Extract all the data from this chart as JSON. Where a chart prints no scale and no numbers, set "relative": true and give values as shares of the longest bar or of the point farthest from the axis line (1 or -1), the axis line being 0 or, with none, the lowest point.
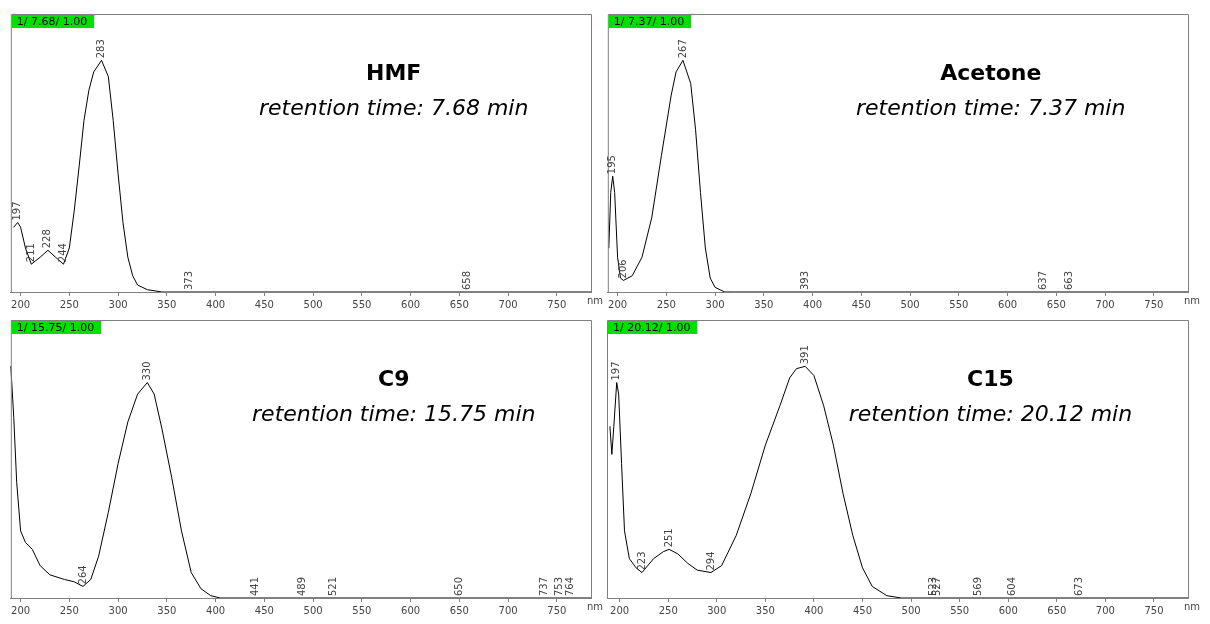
{
  "chart_data": [
    {
      "type": "line",
      "title": "HMF",
      "subtitle": "retention time: 7.68 min",
      "xlabel": "nm",
      "relative": true,
      "xlim": [
        190,
        785
      ],
      "xticks": [
        200,
        250,
        300,
        350,
        400,
        450,
        500,
        550,
        600,
        650,
        700,
        750
      ],
      "grid": false,
      "legend": false,
      "x": [
        193,
        197,
        200,
        205,
        211,
        220,
        228,
        236,
        244,
        250,
        255,
        260,
        265,
        270,
        275,
        283,
        290,
        295,
        300,
        305,
        310,
        315,
        320,
        330,
        345,
        373,
        658,
        785
      ],
      "series": [
        {
          "color": "#000000",
          "values": [
            0.28,
            0.3,
            0.28,
            0.19,
            0.12,
            0.15,
            0.18,
            0.15,
            0.12,
            0.19,
            0.35,
            0.54,
            0.74,
            0.87,
            0.95,
            1,
            0.93,
            0.74,
            0.51,
            0.3,
            0.15,
            0.07,
            0.03,
            0.01,
            0,
            0,
            0,
            0
          ]
        }
      ],
      "annotations": [
        "1/ 7.68/ 1.00",
        {
          "text": "197",
          "x": 197,
          "y": 0.3
        },
        {
          "text": "211",
          "x": 211,
          "y": 0.12
        },
        {
          "text": "228",
          "x": 228,
          "y": 0.18
        },
        {
          "text": "244",
          "x": 244,
          "y": 0.12
        },
        {
          "text": "283",
          "x": 283,
          "y": 1
        },
        {
          "text": "373",
          "x": 373,
          "y": 0
        },
        {
          "text": "658",
          "x": 658,
          "y": 0
        }
      ]
    },
    {
      "type": "line",
      "title": "Acetone",
      "subtitle": "retention time: 7.37 min",
      "xlabel": "nm",
      "relative": true,
      "xlim": [
        190,
        785
      ],
      "xticks": [
        200,
        250,
        300,
        350,
        400,
        450,
        500,
        550,
        600,
        650,
        700,
        750
      ],
      "grid": false,
      "legend": false,
      "x": [
        191,
        193,
        195,
        197,
        200,
        203,
        206,
        215,
        225,
        235,
        245,
        255,
        260,
        267,
        275,
        280,
        285,
        290,
        295,
        300,
        310,
        320,
        393,
        637,
        663,
        785
      ],
      "series": [
        {
          "color": "#000000",
          "values": [
            0.19,
            0.43,
            0.5,
            0.43,
            0.15,
            0.06,
            0.05,
            0.07,
            0.15,
            0.32,
            0.59,
            0.85,
            0.95,
            1,
            0.9,
            0.7,
            0.43,
            0.19,
            0.06,
            0.02,
            0,
            0,
            0,
            0,
            0,
            0
          ]
        }
      ],
      "annotations": [
        "1/ 7.37/ 1.00",
        {
          "text": "195",
          "x": 195,
          "y": 0.5
        },
        {
          "text": "206",
          "x": 206,
          "y": 0.05
        },
        {
          "text": "267",
          "x": 267,
          "y": 1
        },
        {
          "text": "393",
          "x": 393,
          "y": 0
        },
        {
          "text": "637",
          "x": 637,
          "y": 0
        },
        {
          "text": "663",
          "x": 663,
          "y": 0
        }
      ]
    },
    {
      "type": "line",
      "title": "C9",
      "subtitle": "retention time: 15.75 min",
      "xlabel": "nm",
      "relative": true,
      "xlim": [
        190,
        785
      ],
      "xticks": [
        200,
        250,
        300,
        350,
        400,
        450,
        500,
        550,
        600,
        650,
        700,
        750
      ],
      "grid": false,
      "legend": false,
      "x": [
        190,
        193,
        196,
        200,
        205,
        212,
        220,
        230,
        245,
        255,
        264,
        272,
        280,
        290,
        300,
        310,
        320,
        330,
        337,
        345,
        355,
        365,
        375,
        385,
        395,
        405,
        441,
        489,
        521,
        650,
        737,
        753,
        764,
        785
      ],
      "series": [
        {
          "color": "#000000",
          "values": [
            1,
            0.78,
            0.5,
            0.29,
            0.24,
            0.21,
            0.14,
            0.1,
            0.08,
            0.07,
            0.05,
            0.08,
            0.18,
            0.37,
            0.58,
            0.76,
            0.88,
            0.93,
            0.88,
            0.73,
            0.52,
            0.29,
            0.11,
            0.04,
            0.01,
            0,
            0,
            0,
            0,
            0,
            0,
            0,
            0,
            0
          ]
        }
      ],
      "annotations": [
        "1/ 15.75/ 1.00",
        {
          "text": "264",
          "x": 264,
          "y": 0.05
        },
        {
          "text": "330",
          "x": 330,
          "y": 0.93
        },
        {
          "text": "441",
          "x": 441,
          "y": 0
        },
        {
          "text": "489",
          "x": 489,
          "y": 0
        },
        {
          "text": "521",
          "x": 521,
          "y": 0
        },
        {
          "text": "650",
          "x": 650,
          "y": 0
        },
        {
          "text": "737",
          "x": 737,
          "y": 0
        },
        {
          "text": "753",
          "x": 753,
          "y": 0
        },
        {
          "text": "764",
          "x": 764,
          "y": 0
        }
      ]
    },
    {
      "type": "line",
      "title": "C15",
      "subtitle": "retention time: 20.12 min",
      "xlabel": "nm",
      "relative": true,
      "xlim": [
        187,
        785
      ],
      "xticks": [
        200,
        250,
        300,
        350,
        400,
        450,
        500,
        550,
        600,
        650,
        700,
        750
      ],
      "grid": false,
      "legend": false,
      "x": [
        190,
        192,
        194,
        197,
        199,
        202,
        205,
        210,
        217,
        223,
        235,
        245,
        251,
        260,
        270,
        280,
        294,
        305,
        320,
        335,
        350,
        365,
        375,
        382,
        391,
        400,
        410,
        420,
        430,
        440,
        450,
        460,
        475,
        490,
        523,
        527,
        569,
        604,
        673,
        785
      ],
      "series": [
        {
          "color": "#000000",
          "values": [
            0.74,
            0.62,
            0.74,
            0.93,
            0.88,
            0.58,
            0.29,
            0.17,
            0.13,
            0.11,
            0.17,
            0.2,
            0.21,
            0.19,
            0.15,
            0.12,
            0.11,
            0.14,
            0.27,
            0.45,
            0.66,
            0.83,
            0.95,
            0.99,
            1,
            0.96,
            0.83,
            0.66,
            0.45,
            0.27,
            0.13,
            0.05,
            0.01,
            0,
            0,
            0,
            0,
            0,
            0,
            0
          ]
        }
      ],
      "annotations": [
        "1/ 20.12/ 1.00",
        {
          "text": "197",
          "x": 197,
          "y": 0.93
        },
        {
          "text": "223",
          "x": 223,
          "y": 0.11
        },
        {
          "text": "251",
          "x": 251,
          "y": 0.21
        },
        {
          "text": "294",
          "x": 294,
          "y": 0.11
        },
        {
          "text": "391",
          "x": 391,
          "y": 1
        },
        {
          "text": "523",
          "x": 523,
          "y": 0
        },
        {
          "text": "527",
          "x": 527,
          "y": 0
        },
        {
          "text": "569",
          "x": 569,
          "y": 0
        },
        {
          "text": "604",
          "x": 604,
          "y": 0
        },
        {
          "text": "673",
          "x": 673,
          "y": 0
        }
      ]
    }
  ]
}
